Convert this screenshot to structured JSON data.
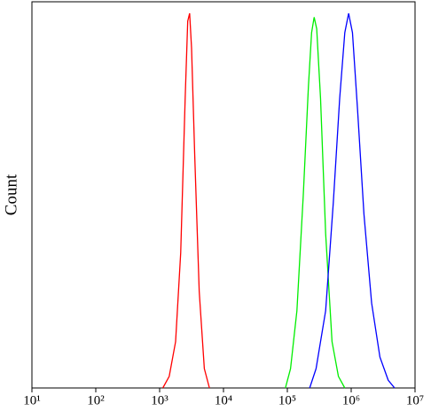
{
  "chart_data": {
    "type": "line",
    "y_label": "Count",
    "xscale": "log",
    "xlim": [
      10,
      10000000
    ],
    "ylim": [
      0,
      100
    ],
    "xticks": [
      {
        "value": 10,
        "label": "10¹"
      },
      {
        "value": 100,
        "label": "10²"
      },
      {
        "value": 1000,
        "label": "10³"
      },
      {
        "value": 10000,
        "label": "10⁴"
      },
      {
        "value": 100000,
        "label": "10⁵"
      },
      {
        "value": 1000000,
        "label": "10⁶"
      },
      {
        "value": 10000000,
        "label": "10⁷"
      }
    ],
    "series": [
      {
        "color": "#ff0000",
        "x": [
          1122,
          1413,
          1778,
          2138,
          2512,
          2754,
          2951,
          3162,
          3548,
          4169,
          5012,
          6026
        ],
        "values": [
          0,
          3,
          12,
          35,
          75,
          95,
          97,
          88,
          60,
          25,
          5,
          0
        ]
      },
      {
        "color": "#00ee00",
        "x": [
          93325,
          112202,
          141254,
          177828,
          213796,
          239883,
          263027,
          288403,
          331131,
          398107,
          501187,
          630957,
          794328
        ],
        "values": [
          0,
          5,
          20,
          50,
          78,
          92,
          96,
          93,
          75,
          40,
          12,
          3,
          0
        ]
      },
      {
        "color": "#0000ff",
        "x": [
          223872,
          281838,
          398107,
          524807,
          660693,
          794328,
          912011,
          1047129,
          1258925,
          1584893,
          2089296,
          2818383,
          3801894,
          4786301
        ],
        "values": [
          0,
          5,
          20,
          48,
          75,
          92,
          97,
          92,
          72,
          45,
          22,
          8,
          2,
          0
        ]
      }
    ]
  }
}
